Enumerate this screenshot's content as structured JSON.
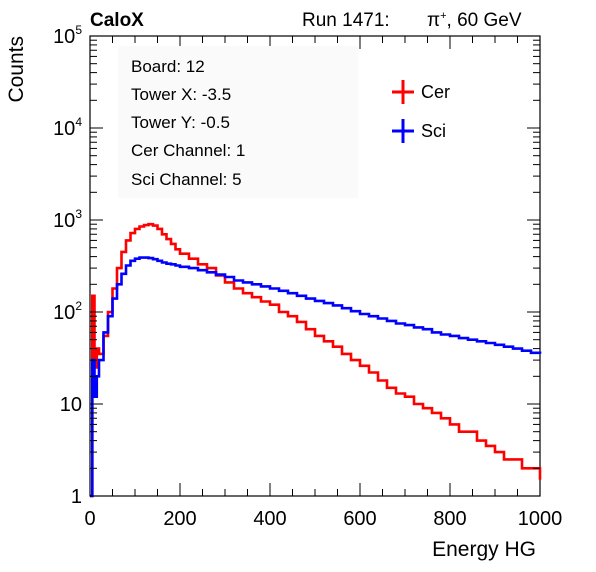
{
  "header": {
    "experiment": "CaloX",
    "run_label": "Run 1471:",
    "particle": "π",
    "particle_charge": "+",
    "beam_energy": ", 60 GeV"
  },
  "info_box": {
    "lines": [
      "Board: 12",
      "Tower X: -3.5",
      "Tower Y: -0.5",
      "Cer Channel: 1",
      "Sci Channel: 5"
    ]
  },
  "colors": {
    "cer": "#ff0000",
    "sci": "#0000ff",
    "axis": "#000000",
    "background": "#ffffff"
  },
  "chart_data": {
    "type": "line",
    "xlabel": "Energy HG",
    "ylabel": "Counts",
    "xlim": [
      0,
      1000
    ],
    "ylim": [
      1,
      100000
    ],
    "yscale": "log",
    "legend_position": "top-right",
    "x_ticks": [
      "0",
      "200",
      "400",
      "600",
      "800",
      "1000"
    ],
    "y_ticks": [
      {
        "value": 1,
        "label": "1"
      },
      {
        "value": 10,
        "label": "10"
      },
      {
        "value": 100,
        "label": "10",
        "exp": "2"
      },
      {
        "value": 1000,
        "label": "10",
        "exp": "3"
      },
      {
        "value": 10000,
        "label": "10",
        "exp": "4"
      },
      {
        "value": 100000,
        "label": "10",
        "exp": "5"
      }
    ],
    "x": [
      0,
      5,
      10,
      15,
      20,
      30,
      40,
      50,
      60,
      70,
      80,
      90,
      100,
      110,
      120,
      130,
      140,
      150,
      160,
      170,
      180,
      190,
      200,
      220,
      240,
      260,
      280,
      300,
      320,
      340,
      360,
      380,
      400,
      420,
      440,
      460,
      480,
      500,
      520,
      540,
      560,
      580,
      600,
      620,
      640,
      660,
      680,
      700,
      720,
      740,
      760,
      780,
      800,
      820,
      840,
      860,
      880,
      900,
      920,
      940,
      960,
      980,
      1000
    ],
    "series": [
      {
        "name": "Cer",
        "values": [
          1,
          150,
          25,
          40,
          35,
          55,
          100,
          180,
          300,
          450,
          600,
          720,
          800,
          850,
          880,
          900,
          870,
          800,
          700,
          620,
          550,
          480,
          430,
          380,
          330,
          300,
          250,
          210,
          180,
          160,
          145,
          130,
          120,
          100,
          90,
          78,
          65,
          55,
          48,
          42,
          35,
          30,
          26,
          22,
          18,
          15,
          13,
          12,
          10,
          9,
          8,
          7,
          6,
          5,
          5,
          4,
          3.5,
          3,
          2.5,
          2.5,
          2,
          2,
          1.5
        ]
      },
      {
        "name": "Sci",
        "values": [
          1,
          30,
          12,
          20,
          30,
          60,
          90,
          140,
          200,
          260,
          320,
          360,
          380,
          390,
          390,
          385,
          375,
          360,
          345,
          335,
          330,
          320,
          310,
          300,
          285,
          270,
          255,
          240,
          220,
          210,
          200,
          190,
          180,
          170,
          160,
          150,
          140,
          132,
          125,
          118,
          110,
          102,
          95,
          90,
          85,
          80,
          75,
          72,
          68,
          65,
          60,
          57,
          55,
          52,
          50,
          48,
          46,
          44,
          42,
          40,
          38,
          36,
          35
        ]
      }
    ]
  }
}
